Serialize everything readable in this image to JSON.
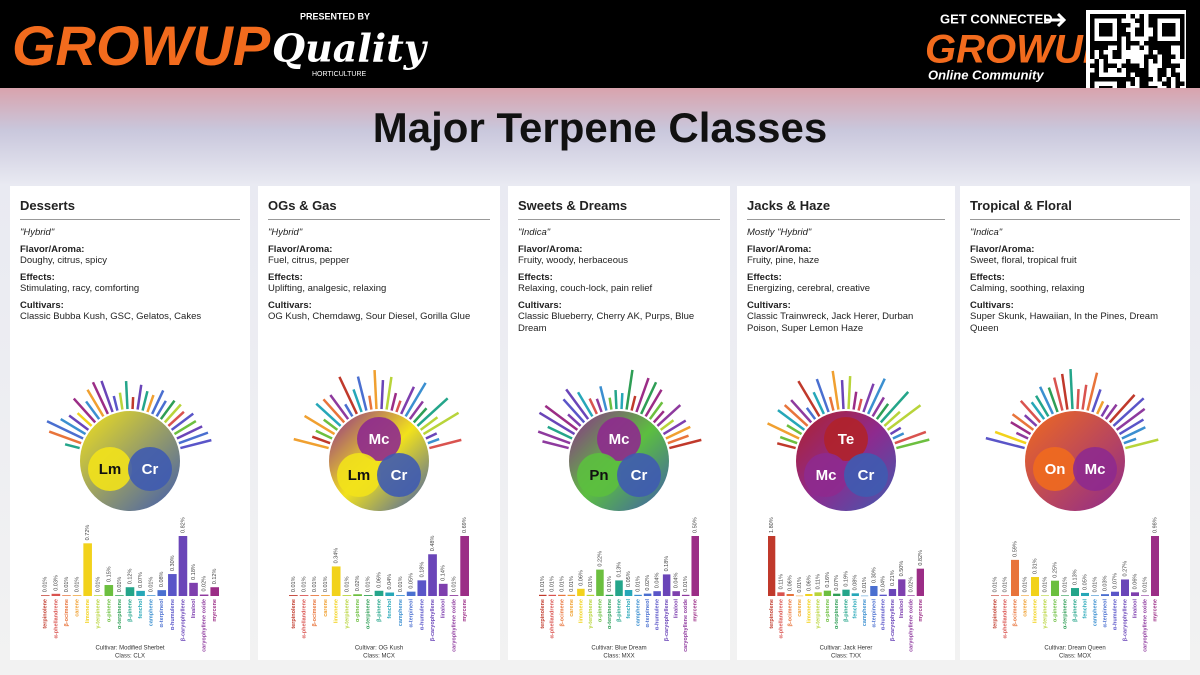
{
  "header": {
    "brand": "GROWUP",
    "presented": "PRESENTED BY",
    "sponsor": "Quality",
    "sponsor_sub": "HORTICULTURE",
    "cta": "GET CONNECTED",
    "community_brand": "GROWUP",
    "community": "Online Community"
  },
  "title": "Major Terpene Classes",
  "terpenes": [
    "terpinolene",
    "α-phellandrene",
    "β-ocimene",
    "carene",
    "limonene",
    "γ-terpinene",
    "α-pinene",
    "α-terpinene",
    "β-pinene",
    "fenchol",
    "camphene",
    "α-terpineol",
    "α-humulene",
    "β-caryophyllene",
    "linalool",
    "caryophyllene oxide",
    "myrcene"
  ],
  "terpene_colors": [
    "#c0392b",
    "#d9534f",
    "#e8743b",
    "#f0a030",
    "#f2d21b",
    "#b8d43a",
    "#6cbf3f",
    "#2e9e55",
    "#24a58a",
    "#26a7b8",
    "#3b8fd0",
    "#4a6fd0",
    "#5a55c8",
    "#6a45b8",
    "#7e3fae",
    "#8e3a9e",
    "#9b2d86"
  ],
  "cards": [
    {
      "title": "Desserts",
      "type": "\"Hybrid\"",
      "flavor_label": "Flavor/Aroma:",
      "flavor": "Doughy, citrus, spicy",
      "effects_label": "Effects:",
      "effects": "Stimulating, racy, comforting",
      "cultivars_label": "Cultivars:",
      "cultivars": "Classic Bubba Kush, GSC, Gelatos, Cakes",
      "classes": [
        {
          "label": "Lm",
          "color": "#f2e21b"
        },
        {
          "label": "Cr",
          "color": "#3f5bb0"
        }
      ],
      "chart": {
        "values": [
          0.01,
          0.03,
          0.01,
          0.01,
          0.72,
          0.01,
          0.15,
          0.01,
          0.12,
          0.07,
          0.01,
          0.08,
          0.3,
          0.82,
          0.18,
          0.02,
          0.12
        ],
        "value_labels": [
          "0.01%",
          "0.03%",
          "0.01%",
          "0.01%",
          "0.72%",
          "0.01%",
          "0.15%",
          "0.01%",
          "0.12%",
          "0.07%",
          "0.01%",
          "0.08%",
          "0.30%",
          "0.82%",
          "0.18%",
          "0.02%",
          "0.12%"
        ],
        "cultivar": "Cultivar: Modified Sherbet",
        "class": "Class: CLX"
      }
    },
    {
      "title": "OGs & Gas",
      "type": "\"Hybrid\"",
      "flavor_label": "Flavor/Aroma:",
      "flavor": "Fuel, citrus, pepper",
      "effects_label": "Effects:",
      "effects": "Uplifting, analgesic, relaxing",
      "cultivars_label": "Cultivars:",
      "cultivars": "OG Kush, Chemdawg, Sour Diesel, Gorilla Glue",
      "classes": [
        {
          "label": "Mc",
          "color": "#8e2a8e"
        },
        {
          "label": "Lm",
          "color": "#f2e21b"
        },
        {
          "label": "Cr",
          "color": "#3f5bb0"
        }
      ],
      "chart": {
        "values": [
          0.01,
          0.01,
          0.01,
          0.01,
          0.34,
          0.01,
          0.02,
          0.01,
          0.06,
          0.04,
          0.01,
          0.05,
          0.18,
          0.48,
          0.14,
          0.01,
          0.69
        ],
        "value_labels": [
          "0.01%",
          "0.01%",
          "0.01%",
          "0.01%",
          "0.34%",
          "0.01%",
          "0.02%",
          "0.01%",
          "0.06%",
          "0.04%",
          "0.01%",
          "0.05%",
          "0.18%",
          "0.48%",
          "0.14%",
          "0.01%",
          "0.69%"
        ],
        "cultivar": "Cultivar: OG Kush",
        "class": "Class: MCX"
      }
    },
    {
      "title": "Sweets & Dreams",
      "type": "\"Indica\"",
      "flavor_label": "Flavor/Aroma:",
      "flavor": "Fruity, woody, herbaceous",
      "effects_label": "Effects:",
      "effects": "Relaxing, couch-lock, pain relief",
      "cultivars_label": "Cultivars:",
      "cultivars": "Classic Blueberry, Cherry AK, Purps, Blue Dream",
      "classes": [
        {
          "label": "Mc",
          "color": "#8e2a8e"
        },
        {
          "label": "Pn",
          "color": "#5cbf3f"
        },
        {
          "label": "Cr",
          "color": "#3f5bb0"
        }
      ],
      "chart": {
        "values": [
          0.01,
          0.01,
          0.01,
          0.01,
          0.06,
          0.01,
          0.22,
          0.01,
          0.13,
          0.05,
          0.01,
          0.02,
          0.04,
          0.18,
          0.04,
          0.01,
          0.5
        ],
        "value_labels": [
          "0.01%",
          "0.01%",
          "0.01%",
          "0.01%",
          "0.06%",
          "0.01%",
          "0.22%",
          "0.01%",
          "0.13%",
          "0.05%",
          "0.01%",
          "0.02%",
          "0.04%",
          "0.18%",
          "0.04%",
          "0.01%",
          "0.50%"
        ],
        "cultivar": "Cultivar: Blue Dream",
        "class": "Class: MXX"
      }
    },
    {
      "title": "Jacks & Haze",
      "type": "Mostly \"Hybrid\"",
      "flavor_label": "Flavor/Aroma:",
      "flavor": "Fruity, pine, haze",
      "effects_label": "Effects:",
      "effects": "Energizing, cerebral, creative",
      "cultivars_label": "Cultivars:",
      "cultivars": "Classic Trainwreck, Jack Herer, Durban Poison, Super Lemon Haze",
      "classes": [
        {
          "label": "Te",
          "color": "#b0222a"
        },
        {
          "label": "Mc",
          "color": "#8e2a8e"
        },
        {
          "label": "Cr",
          "color": "#3f5bb0"
        }
      ],
      "chart": {
        "values": [
          1.8,
          0.11,
          0.06,
          0.01,
          0.06,
          0.11,
          0.16,
          0.07,
          0.19,
          0.08,
          0.01,
          0.3,
          0.04,
          0.21,
          0.5,
          0.02,
          0.82
        ],
        "value_labels": [
          "1.80%",
          "0.11%",
          "0.06%",
          "0.01%",
          "0.06%",
          "0.11%",
          "0.16%",
          "0.07%",
          "0.19%",
          "0.08%",
          "0.01%",
          "0.30%",
          "0.04%",
          "0.21%",
          "0.50%",
          "0.02%",
          "0.82%"
        ],
        "cultivar": "Cultivar: Jack Herer",
        "class": "Class: TXX"
      }
    },
    {
      "title": "Tropical & Floral",
      "type": "\"Indica\"",
      "flavor_label": "Flavor/Aroma:",
      "flavor": "Sweet, floral, tropical fruit",
      "effects_label": "Effects:",
      "effects": "Calming, soothing, relaxing",
      "cultivars_label": "Cultivars:",
      "cultivars": "Super Skunk, Hawaiian, In the Pines, Dream Queen",
      "classes": [
        {
          "label": "On",
          "color": "#f06a1e"
        },
        {
          "label": "Mc",
          "color": "#8e2a8e"
        }
      ],
      "chart": {
        "values": [
          0.01,
          0.01,
          0.59,
          0.01,
          0.31,
          0.01,
          0.25,
          0.01,
          0.13,
          0.05,
          0.01,
          0.03,
          0.07,
          0.27,
          0.06,
          0.01,
          0.98
        ],
        "value_labels": [
          "0.01%",
          "0.01%",
          "0.59%",
          "0.01%",
          "0.31%",
          "0.01%",
          "0.25%",
          "0.01%",
          "0.13%",
          "0.05%",
          "0.01%",
          "0.03%",
          "0.07%",
          "0.27%",
          "0.06%",
          "0.01%",
          "0.98%"
        ],
        "cultivar": "Cultivar: Dream Queen",
        "class": "Class: MOX"
      }
    }
  ]
}
